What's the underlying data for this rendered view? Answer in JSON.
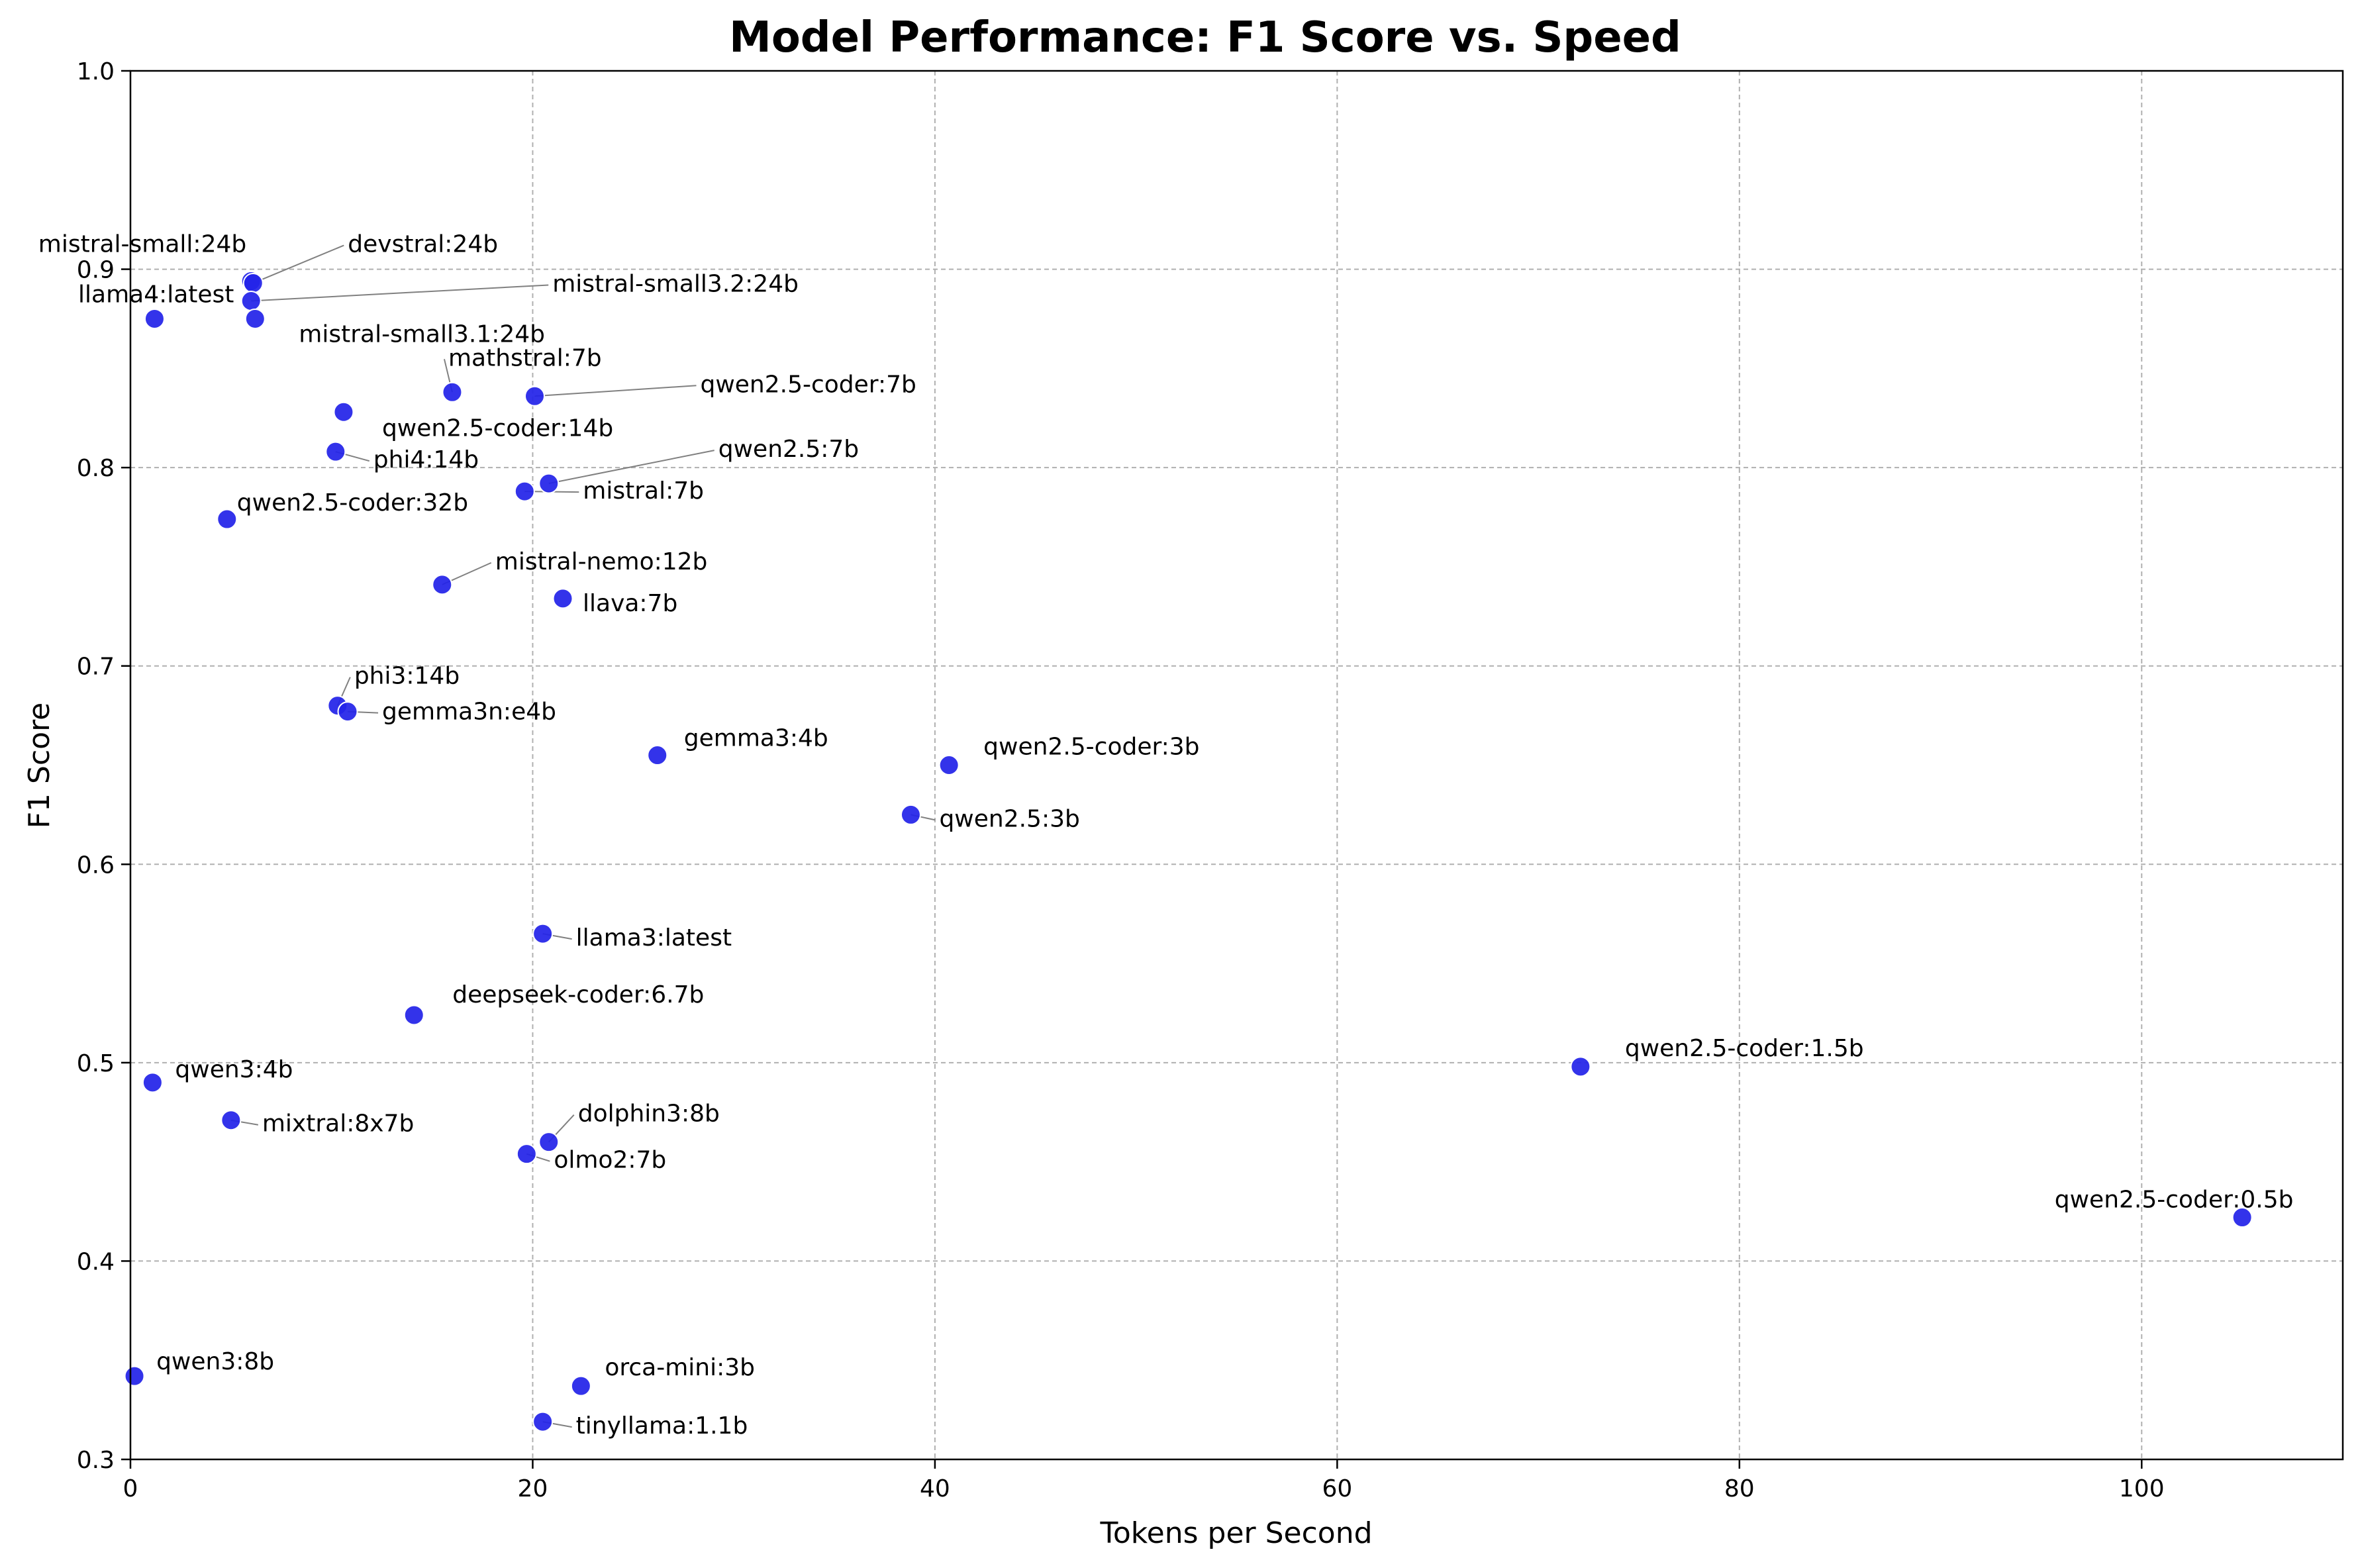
{
  "chart_data": {
    "type": "scatter",
    "title": "Model Performance: F1 Score vs. Speed",
    "xlabel": "Tokens per Second",
    "ylabel": "F1 Score",
    "xlim": [
      0,
      110
    ],
    "ylim": [
      0.3,
      1.0
    ],
    "xticks": [
      "0",
      "20",
      "40",
      "60",
      "80",
      "100"
    ],
    "yticks": [
      "0.3",
      "0.4",
      "0.5",
      "0.6",
      "0.7",
      "0.8",
      "0.9",
      "1.0"
    ],
    "grid": true,
    "marker_color": "#2323e8",
    "points": [
      {
        "name": "mistral-small:24b",
        "x": 6.0,
        "y": 0.894
      },
      {
        "name": "devstral:24b",
        "x": 6.1,
        "y": 0.893
      },
      {
        "name": "mistral-small3.2:24b",
        "x": 6.0,
        "y": 0.884
      },
      {
        "name": "llama4:latest",
        "x": 1.2,
        "y": 0.875
      },
      {
        "name": "mistral-small3.1:24b",
        "x": 6.2,
        "y": 0.875
      },
      {
        "name": "mathstral:7b",
        "x": 16.0,
        "y": 0.838
      },
      {
        "name": "qwen2.5-coder:7b",
        "x": 20.1,
        "y": 0.836
      },
      {
        "name": "qwen2.5-coder:14b",
        "x": 10.6,
        "y": 0.828
      },
      {
        "name": "phi4:14b",
        "x": 10.2,
        "y": 0.808
      },
      {
        "name": "qwen2.5:7b",
        "x": 20.8,
        "y": 0.792
      },
      {
        "name": "mistral:7b",
        "x": 19.6,
        "y": 0.788
      },
      {
        "name": "qwen2.5-coder:32b",
        "x": 4.8,
        "y": 0.774
      },
      {
        "name": "mistral-nemo:12b",
        "x": 15.5,
        "y": 0.741
      },
      {
        "name": "llava:7b",
        "x": 21.5,
        "y": 0.734
      },
      {
        "name": "phi3:14b",
        "x": 10.3,
        "y": 0.68
      },
      {
        "name": "gemma3n:e4b",
        "x": 10.8,
        "y": 0.677
      },
      {
        "name": "gemma3:4b",
        "x": 26.2,
        "y": 0.655
      },
      {
        "name": "qwen2.5-coder:3b",
        "x": 40.7,
        "y": 0.65
      },
      {
        "name": "qwen2.5:3b",
        "x": 38.8,
        "y": 0.625
      },
      {
        "name": "llama3:latest",
        "x": 20.5,
        "y": 0.565
      },
      {
        "name": "deepseek-coder:6.7b",
        "x": 14.1,
        "y": 0.524
      },
      {
        "name": "qwen2.5-coder:1.5b",
        "x": 72.1,
        "y": 0.498
      },
      {
        "name": "qwen3:4b",
        "x": 1.1,
        "y": 0.49
      },
      {
        "name": "mixtral:8x7b",
        "x": 5.0,
        "y": 0.471
      },
      {
        "name": "dolphin3:8b",
        "x": 20.8,
        "y": 0.46
      },
      {
        "name": "olmo2:7b",
        "x": 19.7,
        "y": 0.454
      },
      {
        "name": "qwen2.5-coder:0.5b",
        "x": 105.0,
        "y": 0.422
      },
      {
        "name": "qwen3:8b",
        "x": 0.2,
        "y": 0.342
      },
      {
        "name": "orca-mini:3b",
        "x": 22.4,
        "y": 0.337
      },
      {
        "name": "tinyllama:1.1b",
        "x": 20.5,
        "y": 0.319
      }
    ]
  }
}
